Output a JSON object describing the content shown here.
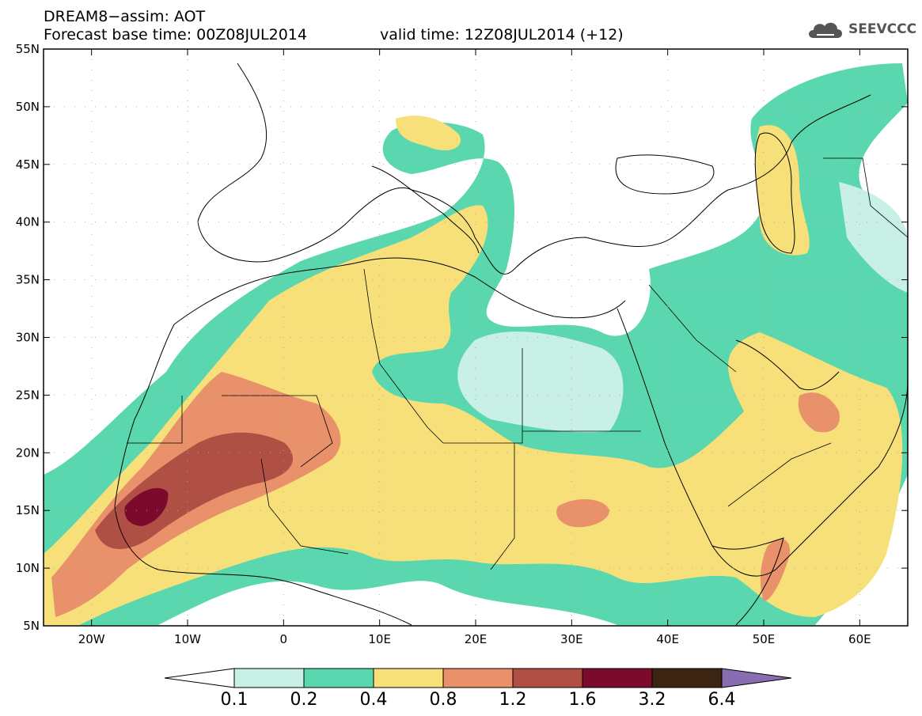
{
  "header": {
    "title": "DREAM8−assim: AOT",
    "base_time": "Forecast base time: 00Z08JUL2014",
    "valid_time": "valid time: 12Z08JUL2014 (+12)"
  },
  "logo": {
    "text": "SEEVCCC",
    "icon": "cloud-icon"
  },
  "map": {
    "variable": "AOT",
    "projection": "equirectangular",
    "lon_range": [
      -25,
      65
    ],
    "lat_range": [
      5,
      55
    ],
    "lat_ticks": [
      "55N",
      "50N",
      "45N",
      "40N",
      "35N",
      "30N",
      "25N",
      "20N",
      "15N",
      "10N",
      "5N"
    ],
    "lon_ticks": [
      "20W",
      "10W",
      "0",
      "10E",
      "20E",
      "30E",
      "40E",
      "50E",
      "60E"
    ],
    "colors": {
      "ocean_land_bg": "#ffffff",
      "coastline": "#000000"
    }
  },
  "legend": {
    "levels": [
      "0.1",
      "0.2",
      "0.4",
      "0.8",
      "1.2",
      "1.6",
      "3.2",
      "6.4"
    ],
    "colors": [
      "#ffffff",
      "#c8f0e6",
      "#5ad7ae",
      "#f7e07a",
      "#e8916a",
      "#b04f43",
      "#7c0a2c",
      "#3b2412",
      "#8a6db0"
    ]
  }
}
